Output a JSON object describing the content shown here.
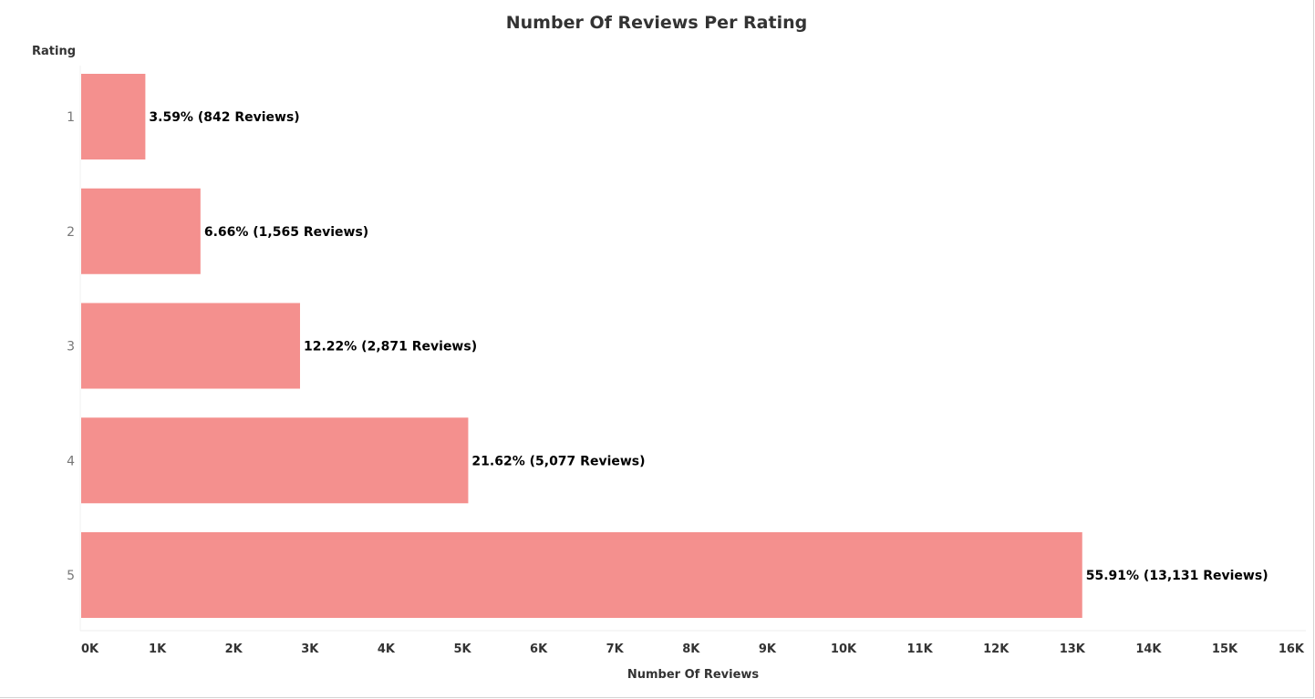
{
  "chart_data": {
    "type": "bar",
    "orientation": "horizontal",
    "title": "Number Of Reviews Per Rating",
    "ylabel": "Rating",
    "xlabel": "Number Of Reviews",
    "categories": [
      "1",
      "2",
      "3",
      "4",
      "5"
    ],
    "values": [
      842,
      1565,
      2871,
      5077,
      13131
    ],
    "data_labels": [
      "3.59% (842 Reviews)",
      "6.66% (1,565 Reviews)",
      "12.22% (2,871 Reviews)",
      "21.62% (5,077 Reviews)",
      "55.91% (13,131 Reviews)"
    ],
    "xlim": [
      0,
      16000
    ],
    "x_ticks": [
      0,
      1000,
      2000,
      3000,
      4000,
      5000,
      6000,
      7000,
      8000,
      9000,
      10000,
      11000,
      12000,
      13000,
      14000,
      15000,
      16000
    ],
    "x_tick_labels": [
      "0K",
      "1K",
      "2K",
      "3K",
      "4K",
      "5K",
      "6K",
      "7K",
      "8K",
      "9K",
      "10K",
      "11K",
      "12K",
      "13K",
      "14K",
      "15K",
      "16K"
    ],
    "grid": false,
    "bar_color": "#f4908e"
  }
}
